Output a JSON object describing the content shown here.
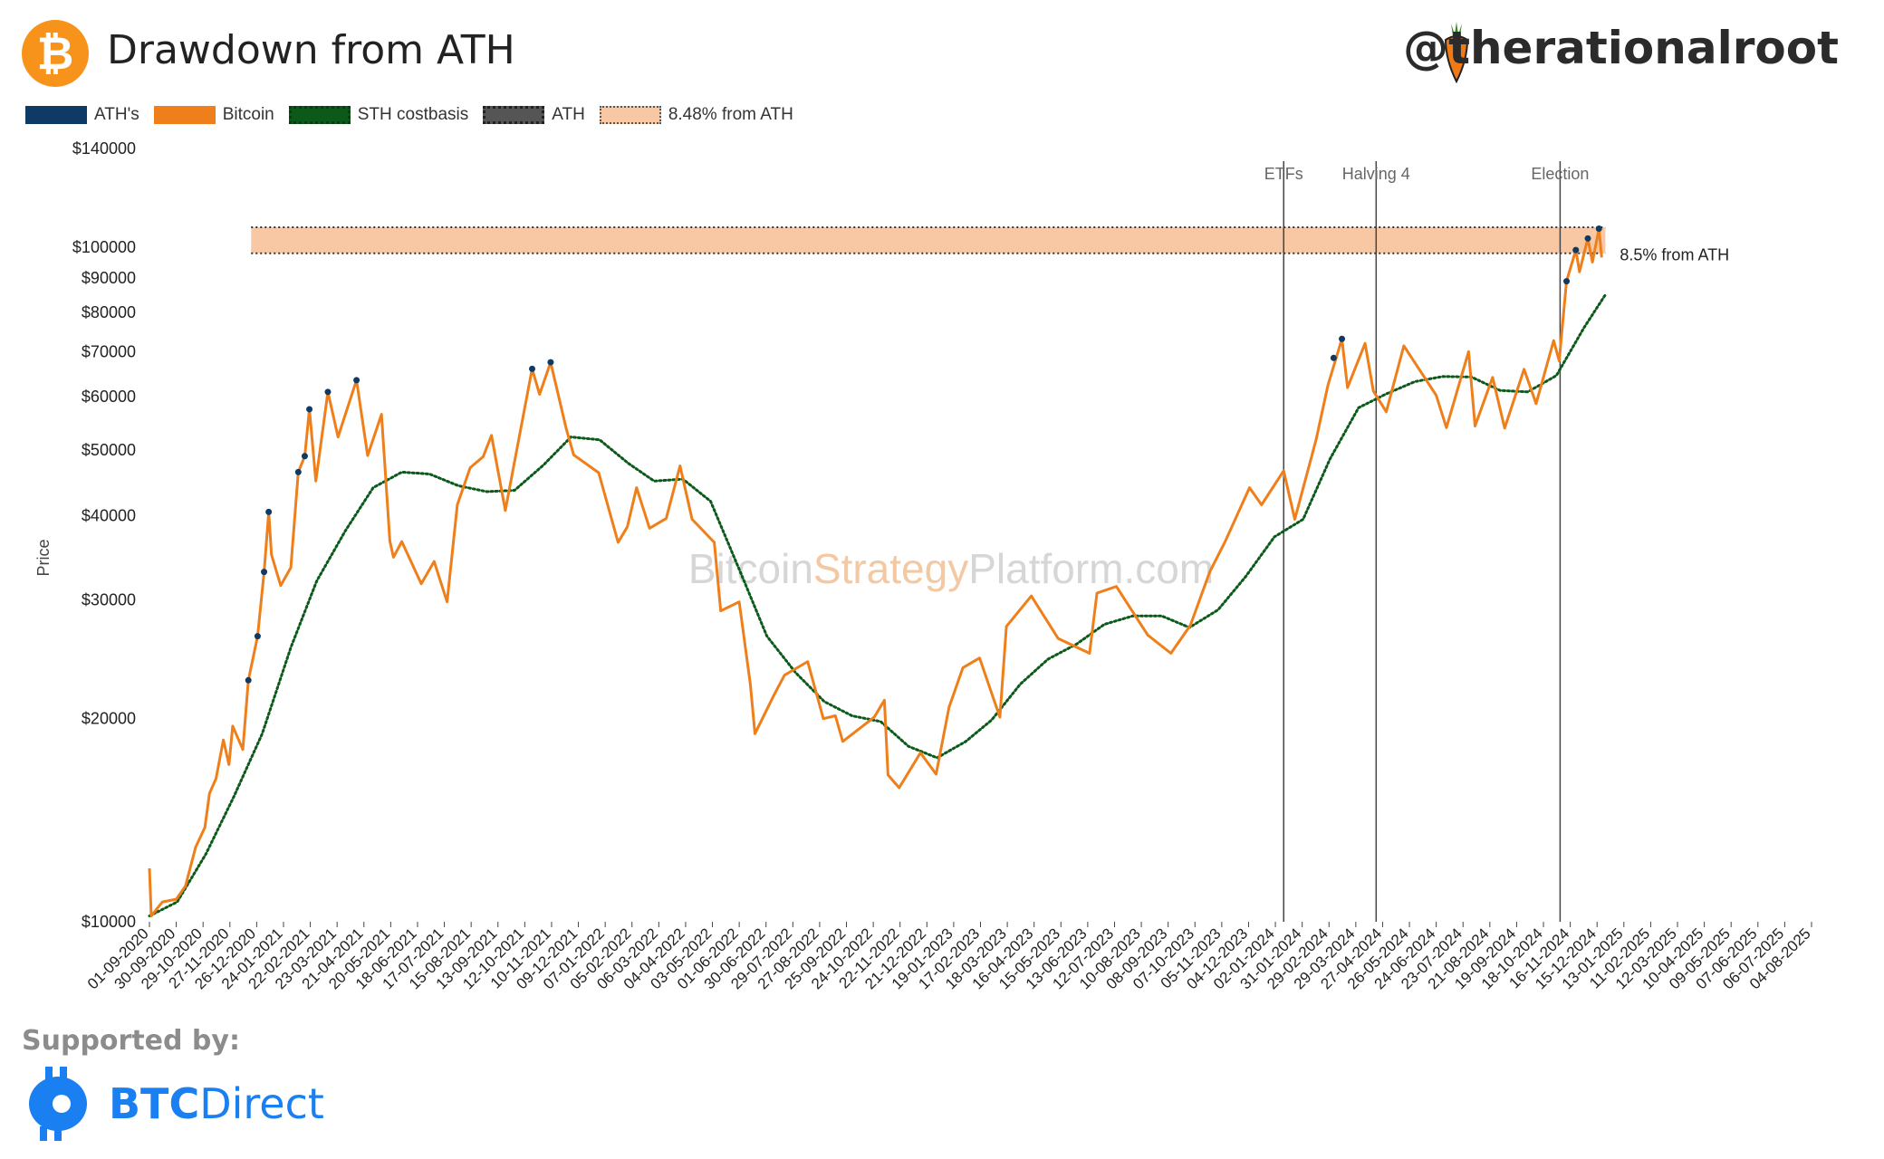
{
  "header": {
    "logo_symbol": "₿",
    "title": "Drawdown from ATH",
    "handle": "@therationalroot",
    "handle_icon": "carrot-icon"
  },
  "legend": [
    {
      "label": "ATH's",
      "key": "ath_points"
    },
    {
      "label": "Bitcoin",
      "key": "bitcoin"
    },
    {
      "label": "STH costbasis",
      "key": "sth"
    },
    {
      "label": "ATH",
      "key": "ath"
    },
    {
      "label": "8.48% from ATH",
      "key": "band"
    }
  ],
  "colors": {
    "bitcoin": "#ef7f1a",
    "sth": "#0b5a1a",
    "ath_points": "#0f3a63",
    "ath_line": "#333333",
    "band": "#f8c8a4",
    "vline": "#444444",
    "brand_blue": "#1a7ff0"
  },
  "watermark": {
    "part1": "Bitcoin",
    "part2": "Strategy",
    "part3": "Platform.com"
  },
  "footer": {
    "supported_label": "Supported by:",
    "brand_bold": "BTC",
    "brand_rest": "Direct",
    "brand_icon": "btcdirect-logo-icon"
  },
  "chart_data": {
    "type": "line",
    "ylabel": "Price",
    "y_scale": "log",
    "ylim": [
      10000,
      140000
    ],
    "ytick_labels": [
      {
        "value": 10000,
        "label": "$10000"
      },
      {
        "value": 20000,
        "label": "$20000"
      },
      {
        "value": 30000,
        "label": "$30000"
      },
      {
        "value": 40000,
        "label": "$40000"
      },
      {
        "value": 50000,
        "label": "$50000"
      },
      {
        "value": 60000,
        "label": "$60000"
      },
      {
        "value": 70000,
        "label": "$70000"
      },
      {
        "value": 80000,
        "label": "$80000"
      },
      {
        "value": 90000,
        "label": "$90000"
      },
      {
        "value": 100000,
        "label": "$100000"
      },
      {
        "value": 140000,
        "label": "$140000"
      }
    ],
    "xlim": [
      "2020-09-01",
      "2025-08-04"
    ],
    "x_ticks": [
      "01-09-2020",
      "30-09-2020",
      "29-10-2020",
      "27-11-2020",
      "26-12-2020",
      "24-01-2021",
      "22-02-2021",
      "23-03-2021",
      "21-04-2021",
      "20-05-2021",
      "18-06-2021",
      "17-07-2021",
      "15-08-2021",
      "13-09-2021",
      "12-10-2021",
      "10-11-2021",
      "09-12-2021",
      "07-01-2022",
      "05-02-2022",
      "06-03-2022",
      "04-04-2022",
      "03-05-2022",
      "01-06-2022",
      "30-06-2022",
      "29-07-2022",
      "27-08-2022",
      "25-09-2022",
      "24-10-2022",
      "22-11-2022",
      "21-12-2022",
      "19-01-2023",
      "17-02-2023",
      "18-03-2023",
      "16-04-2023",
      "15-05-2023",
      "13-06-2023",
      "12-07-2023",
      "10-08-2023",
      "08-09-2023",
      "07-10-2023",
      "05-11-2023",
      "04-12-2023",
      "02-01-2024",
      "31-01-2024",
      "29-02-2024",
      "29-03-2024",
      "27-04-2024",
      "26-05-2024",
      "24-06-2024",
      "23-07-2024",
      "21-08-2024",
      "19-09-2024",
      "18-10-2024",
      "16-11-2024",
      "15-12-2024",
      "13-01-2025",
      "11-02-2025",
      "12-03-2025",
      "10-04-2025",
      "09-05-2025",
      "07-06-2025",
      "06-07-2025",
      "04-08-2025"
    ],
    "band": {
      "upper": 107000,
      "lower": 97900,
      "start": "2020-12-20",
      "end": "2024-12-24",
      "label": "8.5% from ATH"
    },
    "vertical_lines": [
      {
        "date": "2024-01-11",
        "label": "ETFs"
      },
      {
        "date": "2024-04-20",
        "label": "Halving 4"
      },
      {
        "date": "2024-11-05",
        "label": "Election"
      }
    ],
    "series": [
      {
        "name": "Bitcoin",
        "points": [
          [
            "2020-09-01",
            12000
          ],
          [
            "2020-09-03",
            10200
          ],
          [
            "2020-09-15",
            10700
          ],
          [
            "2020-09-30",
            10800
          ],
          [
            "2020-10-10",
            11300
          ],
          [
            "2020-10-21",
            12900
          ],
          [
            "2020-10-31",
            13800
          ],
          [
            "2020-11-05",
            15500
          ],
          [
            "2020-11-12",
            16300
          ],
          [
            "2020-11-20",
            18600
          ],
          [
            "2020-11-26",
            17100
          ],
          [
            "2020-11-30",
            19500
          ],
          [
            "2020-12-11",
            18000
          ],
          [
            "2020-12-17",
            22800
          ],
          [
            "2020-12-27",
            26500
          ],
          [
            "2021-01-03",
            33000
          ],
          [
            "2021-01-08",
            40500
          ],
          [
            "2021-01-11",
            35000
          ],
          [
            "2021-01-21",
            31500
          ],
          [
            "2021-02-01",
            33500
          ],
          [
            "2021-02-09",
            46400
          ],
          [
            "2021-02-16",
            49000
          ],
          [
            "2021-02-21",
            57500
          ],
          [
            "2021-02-28",
            45000
          ],
          [
            "2021-03-13",
            61000
          ],
          [
            "2021-03-24",
            52300
          ],
          [
            "2021-04-13",
            63500
          ],
          [
            "2021-04-25",
            49100
          ],
          [
            "2021-05-10",
            56500
          ],
          [
            "2021-05-19",
            36700
          ],
          [
            "2021-05-23",
            34700
          ],
          [
            "2021-06-01",
            36600
          ],
          [
            "2021-06-22",
            31700
          ],
          [
            "2021-07-06",
            34200
          ],
          [
            "2021-07-20",
            29800
          ],
          [
            "2021-07-31",
            41500
          ],
          [
            "2021-08-14",
            47100
          ],
          [
            "2021-08-28",
            48900
          ],
          [
            "2021-09-06",
            52600
          ],
          [
            "2021-09-21",
            40700
          ],
          [
            "2021-10-01",
            48100
          ],
          [
            "2021-10-20",
            66000
          ],
          [
            "2021-10-28",
            60500
          ],
          [
            "2021-11-09",
            67500
          ],
          [
            "2021-11-26",
            53700
          ],
          [
            "2021-12-04",
            49200
          ],
          [
            "2021-12-31",
            46300
          ],
          [
            "2022-01-21",
            36500
          ],
          [
            "2022-01-31",
            38500
          ],
          [
            "2022-02-10",
            44000
          ],
          [
            "2022-02-24",
            38300
          ],
          [
            "2022-03-14",
            39600
          ],
          [
            "2022-03-29",
            47400
          ],
          [
            "2022-04-11",
            39500
          ],
          [
            "2022-05-05",
            36500
          ],
          [
            "2022-05-12",
            28900
          ],
          [
            "2022-06-01",
            29800
          ],
          [
            "2022-06-13",
            22500
          ],
          [
            "2022-06-18",
            19000
          ],
          [
            "2022-07-08",
            21600
          ],
          [
            "2022-07-20",
            23200
          ],
          [
            "2022-08-14",
            24300
          ],
          [
            "2022-08-31",
            20000
          ],
          [
            "2022-09-13",
            20200
          ],
          [
            "2022-09-21",
            18500
          ],
          [
            "2022-10-25",
            20100
          ],
          [
            "2022-11-05",
            21300
          ],
          [
            "2022-11-09",
            16500
          ],
          [
            "2022-11-21",
            15800
          ],
          [
            "2022-12-14",
            17800
          ],
          [
            "2022-12-31",
            16550
          ],
          [
            "2023-01-14",
            20800
          ],
          [
            "2023-01-29",
            23800
          ],
          [
            "2023-02-16",
            24600
          ],
          [
            "2023-03-10",
            20100
          ],
          [
            "2023-03-17",
            27400
          ],
          [
            "2023-04-13",
            30400
          ],
          [
            "2023-05-12",
            26300
          ],
          [
            "2023-06-15",
            25000
          ],
          [
            "2023-06-23",
            30700
          ],
          [
            "2023-07-14",
            31400
          ],
          [
            "2023-08-17",
            26600
          ],
          [
            "2023-09-11",
            25000
          ],
          [
            "2023-10-02",
            27500
          ],
          [
            "2023-10-23",
            33000
          ],
          [
            "2023-11-09",
            36700
          ],
          [
            "2023-12-05",
            44000
          ],
          [
            "2023-12-18",
            41500
          ],
          [
            "2024-01-11",
            46600
          ],
          [
            "2024-01-23",
            39500
          ],
          [
            "2024-02-15",
            51800
          ],
          [
            "2024-02-28",
            62500
          ],
          [
            "2024-03-14",
            73100
          ],
          [
            "2024-03-20",
            61900
          ],
          [
            "2024-04-08",
            72000
          ],
          [
            "2024-04-17",
            61200
          ],
          [
            "2024-05-01",
            57000
          ],
          [
            "2024-05-20",
            71400
          ],
          [
            "2024-06-24",
            60300
          ],
          [
            "2024-07-05",
            54000
          ],
          [
            "2024-07-29",
            70000
          ],
          [
            "2024-08-05",
            54300
          ],
          [
            "2024-08-24",
            64100
          ],
          [
            "2024-09-06",
            53900
          ],
          [
            "2024-09-27",
            65900
          ],
          [
            "2024-10-10",
            58600
          ],
          [
            "2024-10-29",
            72700
          ],
          [
            "2024-11-04",
            67800
          ],
          [
            "2024-11-12",
            89000
          ],
          [
            "2024-11-22",
            99000
          ],
          [
            "2024-11-26",
            91900
          ],
          [
            "2024-12-05",
            103000
          ],
          [
            "2024-12-10",
            95000
          ],
          [
            "2024-12-17",
            106500
          ],
          [
            "2024-12-20",
            96500
          ]
        ]
      },
      {
        "name": "STH costbasis",
        "points": [
          [
            "2020-09-01",
            10200
          ],
          [
            "2020-10-01",
            10700
          ],
          [
            "2020-11-01",
            12600
          ],
          [
            "2020-12-01",
            15300
          ],
          [
            "2021-01-01",
            19000
          ],
          [
            "2021-02-01",
            25500
          ],
          [
            "2021-03-01",
            32000
          ],
          [
            "2021-04-01",
            38000
          ],
          [
            "2021-05-01",
            44000
          ],
          [
            "2021-06-01",
            46400
          ],
          [
            "2021-07-01",
            46100
          ],
          [
            "2021-08-01",
            44300
          ],
          [
            "2021-09-01",
            43400
          ],
          [
            "2021-10-01",
            43600
          ],
          [
            "2021-11-01",
            47500
          ],
          [
            "2021-12-01",
            52300
          ],
          [
            "2022-01-01",
            51800
          ],
          [
            "2022-02-01",
            47800
          ],
          [
            "2022-03-01",
            45000
          ],
          [
            "2022-04-01",
            45300
          ],
          [
            "2022-05-01",
            42000
          ],
          [
            "2022-06-01",
            33300
          ],
          [
            "2022-07-01",
            26500
          ],
          [
            "2022-08-01",
            23400
          ],
          [
            "2022-09-01",
            21200
          ],
          [
            "2022-10-01",
            20200
          ],
          [
            "2022-11-01",
            19800
          ],
          [
            "2022-12-01",
            18200
          ],
          [
            "2023-01-01",
            17500
          ],
          [
            "2023-02-01",
            18500
          ],
          [
            "2023-03-01",
            19900
          ],
          [
            "2023-04-01",
            22500
          ],
          [
            "2023-05-01",
            24500
          ],
          [
            "2023-06-01",
            25800
          ],
          [
            "2023-07-01",
            27600
          ],
          [
            "2023-08-01",
            28400
          ],
          [
            "2023-09-01",
            28400
          ],
          [
            "2023-10-01",
            27300
          ],
          [
            "2023-11-01",
            29000
          ],
          [
            "2023-12-01",
            32500
          ],
          [
            "2024-01-01",
            37200
          ],
          [
            "2024-02-01",
            39500
          ],
          [
            "2024-03-01",
            48500
          ],
          [
            "2024-04-01",
            57800
          ],
          [
            "2024-05-01",
            60600
          ],
          [
            "2024-06-01",
            63200
          ],
          [
            "2024-07-01",
            64300
          ],
          [
            "2024-08-01",
            64200
          ],
          [
            "2024-09-01",
            61300
          ],
          [
            "2024-10-01",
            61000
          ],
          [
            "2024-11-01",
            64500
          ],
          [
            "2024-12-01",
            76000
          ],
          [
            "2024-12-24",
            85000
          ]
        ]
      },
      {
        "name": "ATH's",
        "points": [
          [
            "2020-12-17",
            22800
          ],
          [
            "2020-12-27",
            26500
          ],
          [
            "2021-01-03",
            33000
          ],
          [
            "2021-01-08",
            40500
          ],
          [
            "2021-02-09",
            46400
          ],
          [
            "2021-02-16",
            49000
          ],
          [
            "2021-02-21",
            57500
          ],
          [
            "2021-03-13",
            61000
          ],
          [
            "2021-04-13",
            63500
          ],
          [
            "2021-10-20",
            66000
          ],
          [
            "2021-11-09",
            67500
          ],
          [
            "2024-03-05",
            68500
          ],
          [
            "2024-03-14",
            73100
          ],
          [
            "2024-11-12",
            89000
          ],
          [
            "2024-11-22",
            99000
          ],
          [
            "2024-12-05",
            103000
          ],
          [
            "2024-12-17",
            106500
          ]
        ]
      }
    ]
  }
}
